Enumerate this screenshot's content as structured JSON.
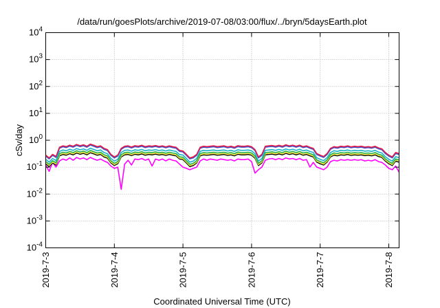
{
  "chart_data": {
    "type": "line",
    "title": "/data/run/goesPlots/archive/2019-07-08/03:00/flux/../bryn/5daysEarth.plot",
    "xlabel": "Coordinated Universal Time (UTC)",
    "ylabel": "cSv/day",
    "yscale": "log",
    "ylim": [
      0.0001,
      10000
    ],
    "xlim_days": [
      0,
      5.15
    ],
    "grid": true,
    "y_ticks": [
      {
        "value": 0.0001,
        "base": "10",
        "exp": "-4"
      },
      {
        "value": 0.001,
        "base": "10",
        "exp": "-3"
      },
      {
        "value": 0.01,
        "base": "10",
        "exp": "-2"
      },
      {
        "value": 0.1,
        "base": "10",
        "exp": "-1"
      },
      {
        "value": 1,
        "base": "10",
        "exp": "0"
      },
      {
        "value": 10,
        "base": "10",
        "exp": "1"
      },
      {
        "value": 100,
        "base": "10",
        "exp": "2"
      },
      {
        "value": 1000,
        "base": "10",
        "exp": "3"
      },
      {
        "value": 10000,
        "base": "10",
        "exp": "4"
      }
    ],
    "x_ticks": [
      {
        "day": 0,
        "label": "2019-7-3"
      },
      {
        "day": 1,
        "label": "2019-7-4"
      },
      {
        "day": 2,
        "label": "2019-7-5"
      },
      {
        "day": 3,
        "label": "2019-7-6"
      },
      {
        "day": 4,
        "label": "2019-7-7"
      },
      {
        "day": 5,
        "label": "2019-7-8"
      }
    ],
    "series_colors": [
      "#e6194b",
      "#3a56c9",
      "#1ab0c8",
      "#22b24c",
      "#f0e040",
      "#000000",
      "#ff00ff"
    ],
    "series_scale": [
      1.0,
      0.92,
      0.7,
      0.58,
      0.52,
      0.48,
      0.42
    ],
    "x": [
      0,
      0.05,
      0.1,
      0.15,
      0.2,
      0.25,
      0.3,
      0.35,
      0.4,
      0.45,
      0.5,
      0.55,
      0.6,
      0.65,
      0.7,
      0.75,
      0.8,
      0.85,
      0.9,
      0.95,
      1.0,
      1.05,
      1.1,
      1.15,
      1.2,
      1.25,
      1.3,
      1.35,
      1.4,
      1.45,
      1.5,
      1.55,
      1.6,
      1.65,
      1.7,
      1.75,
      1.8,
      1.85,
      1.9,
      1.95,
      2.0,
      2.05,
      2.1,
      2.15,
      2.2,
      2.25,
      2.3,
      2.35,
      2.4,
      2.45,
      2.5,
      2.55,
      2.6,
      2.65,
      2.7,
      2.75,
      2.8,
      2.85,
      2.9,
      2.95,
      3.0,
      3.05,
      3.1,
      3.15,
      3.2,
      3.25,
      3.3,
      3.35,
      3.4,
      3.45,
      3.5,
      3.55,
      3.6,
      3.65,
      3.7,
      3.75,
      3.8,
      3.85,
      3.9,
      3.95,
      4.0,
      4.05,
      4.1,
      4.15,
      4.2,
      4.25,
      4.3,
      4.35,
      4.4,
      4.45,
      4.5,
      4.55,
      4.6,
      4.65,
      4.7,
      4.75,
      4.8,
      4.85,
      4.9,
      4.95,
      5.0,
      5.05,
      5.1,
      5.15
    ],
    "y_top": [
      0.28,
      0.22,
      0.3,
      0.25,
      0.55,
      0.62,
      0.58,
      0.66,
      0.6,
      0.7,
      0.63,
      0.68,
      0.6,
      0.72,
      0.65,
      0.58,
      0.62,
      0.5,
      0.45,
      0.3,
      0.24,
      0.28,
      0.5,
      0.6,
      0.62,
      0.56,
      0.63,
      0.6,
      0.65,
      0.58,
      0.62,
      0.6,
      0.64,
      0.59,
      0.62,
      0.57,
      0.62,
      0.58,
      0.55,
      0.42,
      0.4,
      0.3,
      0.22,
      0.24,
      0.3,
      0.55,
      0.6,
      0.58,
      0.6,
      0.62,
      0.58,
      0.6,
      0.62,
      0.57,
      0.6,
      0.55,
      0.63,
      0.6,
      0.6,
      0.62,
      0.58,
      0.45,
      0.24,
      0.3,
      0.6,
      0.62,
      0.64,
      0.6,
      0.65,
      0.6,
      0.68,
      0.62,
      0.66,
      0.6,
      0.66,
      0.58,
      0.62,
      0.55,
      0.5,
      0.32,
      0.28,
      0.25,
      0.32,
      0.5,
      0.58,
      0.55,
      0.6,
      0.58,
      0.62,
      0.57,
      0.6,
      0.58,
      0.6,
      0.56,
      0.58,
      0.55,
      0.6,
      0.52,
      0.48,
      0.35,
      0.28,
      0.24,
      0.35,
      0.32
    ],
    "y_bottom": [
      0.12,
      0.07,
      0.15,
      0.1,
      0.17,
      0.2,
      0.18,
      0.22,
      0.18,
      0.23,
      0.2,
      0.22,
      0.19,
      0.23,
      0.2,
      0.18,
      0.2,
      0.17,
      0.15,
      0.11,
      0.09,
      0.1,
      0.015,
      0.13,
      0.18,
      0.12,
      0.2,
      0.19,
      0.21,
      0.18,
      0.2,
      0.11,
      0.2,
      0.18,
      0.2,
      0.17,
      0.2,
      0.18,
      0.17,
      0.13,
      0.1,
      0.09,
      0.08,
      0.09,
      0.1,
      0.17,
      0.2,
      0.18,
      0.2,
      0.19,
      0.18,
      0.2,
      0.19,
      0.18,
      0.19,
      0.17,
      0.2,
      0.19,
      0.19,
      0.2,
      0.16,
      0.06,
      0.08,
      0.1,
      0.18,
      0.2,
      0.21,
      0.19,
      0.21,
      0.19,
      0.22,
      0.2,
      0.21,
      0.19,
      0.21,
      0.18,
      0.19,
      0.1,
      0.15,
      0.1,
      0.09,
      0.08,
      0.1,
      0.16,
      0.18,
      0.17,
      0.19,
      0.18,
      0.19,
      0.18,
      0.19,
      0.18,
      0.19,
      0.17,
      0.18,
      0.17,
      0.19,
      0.16,
      0.15,
      0.12,
      0.09,
      0.08,
      0.11,
      0.065
    ]
  }
}
